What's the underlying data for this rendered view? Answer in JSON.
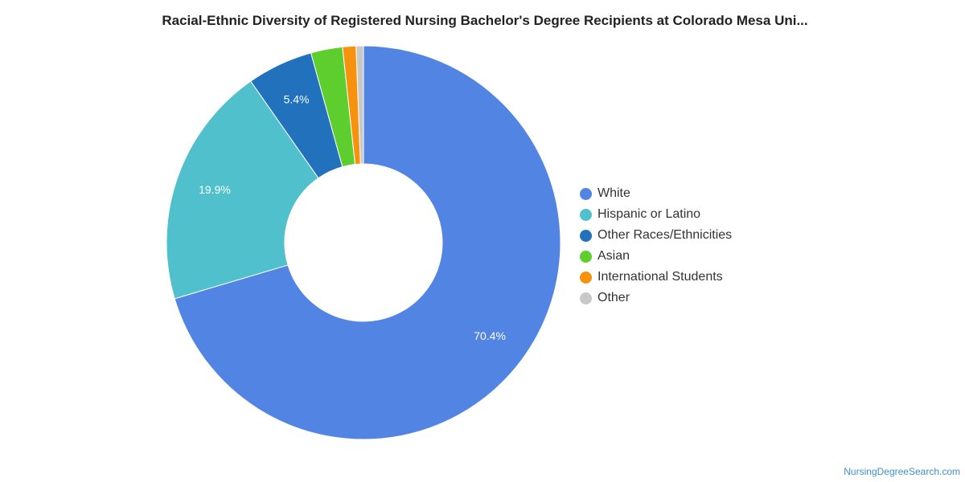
{
  "chart_data": {
    "type": "pie",
    "title": "Racial-Ethnic Diversity of Registered Nursing Bachelor's Degree Recipients at Colorado Mesa Uni...",
    "categories": [
      "White",
      "Hispanic or Latino",
      "Other Races/Ethnicities",
      "Asian",
      "International Students",
      "Other"
    ],
    "values": [
      70.4,
      19.9,
      5.4,
      2.6,
      1.1,
      0.6
    ],
    "data_labels": [
      "70.4%",
      "19.9%",
      "5.4%",
      "",
      "",
      ""
    ],
    "colors": [
      "#5285e3",
      "#50c0cc",
      "#2171bc",
      "#5ece2e",
      "#f7920f",
      "#c8c8c8"
    ],
    "donut": true,
    "legend_position": "right"
  },
  "footer": {
    "source": "NursingDegreeSearch.com"
  }
}
